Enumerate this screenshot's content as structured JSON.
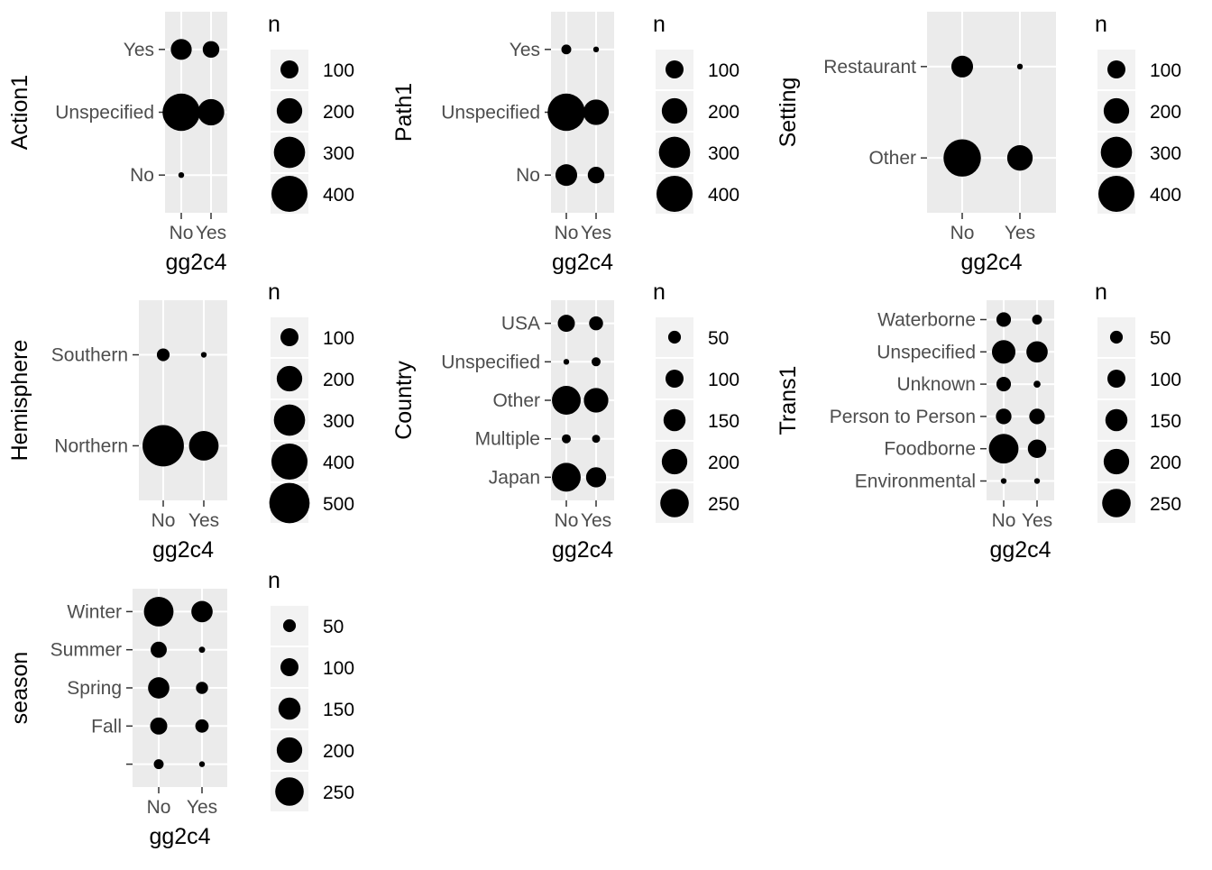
{
  "colors": {
    "panel_bg": "#ebebeb",
    "grid": "#ffffff",
    "point": "#000000",
    "tick": "#333333",
    "tick_label": "#4d4d4d",
    "legend_key_bg": "#f2f2f2"
  },
  "chart_data": [
    {
      "type": "scatter",
      "title": "",
      "xlabel": "gg2c4",
      "ylabel": "Action1",
      "x_categories": [
        "No",
        "Yes"
      ],
      "y_categories": [
        "No",
        "Unspecified",
        "Yes"
      ],
      "points": [
        {
          "x": "No",
          "y": "No",
          "n": 10
        },
        {
          "x": "No",
          "y": "Unspecified",
          "n": 430
        },
        {
          "x": "Yes",
          "y": "Unspecified",
          "n": 215
        },
        {
          "x": "No",
          "y": "Yes",
          "n": 135
        },
        {
          "x": "Yes",
          "y": "Yes",
          "n": 85
        }
      ],
      "legend": {
        "title": "n",
        "breaks": [
          100,
          200,
          300,
          400
        ],
        "labels": [
          "100",
          "200",
          "300",
          "400"
        ]
      }
    },
    {
      "type": "scatter",
      "title": "",
      "xlabel": "gg2c4",
      "ylabel": "Path1",
      "x_categories": [
        "No",
        "Yes"
      ],
      "y_categories": [
        "No",
        "Unspecified",
        "Yes"
      ],
      "points": [
        {
          "x": "No",
          "y": "No",
          "n": 145
        },
        {
          "x": "Yes",
          "y": "No",
          "n": 85
        },
        {
          "x": "No",
          "y": "Unspecified",
          "n": 430
        },
        {
          "x": "Yes",
          "y": "Unspecified",
          "n": 200
        },
        {
          "x": "No",
          "y": "Yes",
          "n": 30
        },
        {
          "x": "Yes",
          "y": "Yes",
          "n": 10
        }
      ],
      "legend": {
        "title": "n",
        "breaks": [
          100,
          200,
          300,
          400
        ],
        "labels": [
          "100",
          "200",
          "300",
          "400"
        ]
      }
    },
    {
      "type": "scatter",
      "title": "",
      "xlabel": "gg2c4",
      "ylabel": "Setting",
      "x_categories": [
        "No",
        "Yes"
      ],
      "y_categories": [
        "Other",
        "Restaurant"
      ],
      "points": [
        {
          "x": "No",
          "y": "Other",
          "n": 430
        },
        {
          "x": "Yes",
          "y": "Other",
          "n": 200
        },
        {
          "x": "No",
          "y": "Restaurant",
          "n": 145
        },
        {
          "x": "Yes",
          "y": "Restaurant",
          "n": 10
        }
      ],
      "legend": {
        "title": "n",
        "breaks": [
          100,
          200,
          300,
          400
        ],
        "labels": [
          "100",
          "200",
          "300",
          "400"
        ]
      }
    },
    {
      "type": "scatter",
      "title": "",
      "xlabel": "gg2c4",
      "ylabel": "Hemisphere",
      "x_categories": [
        "No",
        "Yes"
      ],
      "y_categories": [
        "Northern",
        "Southern"
      ],
      "points": [
        {
          "x": "No",
          "y": "Northern",
          "n": 525
        },
        {
          "x": "Yes",
          "y": "Northern",
          "n": 270
        },
        {
          "x": "No",
          "y": "Southern",
          "n": 50
        },
        {
          "x": "Yes",
          "y": "Southern",
          "n": 10
        }
      ],
      "legend": {
        "title": "n",
        "breaks": [
          100,
          200,
          300,
          400,
          500
        ],
        "labels": [
          "100",
          "200",
          "300",
          "400",
          "500"
        ]
      }
    },
    {
      "type": "scatter",
      "title": "",
      "xlabel": "gg2c4",
      "ylabel": "Country",
      "x_categories": [
        "No",
        "Yes"
      ],
      "y_categories": [
        "Japan",
        "Multiple",
        "Other",
        "Unspecified",
        "USA"
      ],
      "points": [
        {
          "x": "No",
          "y": "Japan",
          "n": 255
        },
        {
          "x": "Yes",
          "y": "Japan",
          "n": 125
        },
        {
          "x": "No",
          "y": "Multiple",
          "n": 25
        },
        {
          "x": "Yes",
          "y": "Multiple",
          "n": 20
        },
        {
          "x": "No",
          "y": "Other",
          "n": 255
        },
        {
          "x": "Yes",
          "y": "Other",
          "n": 185
        },
        {
          "x": "No",
          "y": "Unspecified",
          "n": 8
        },
        {
          "x": "Yes",
          "y": "Unspecified",
          "n": 25
        },
        {
          "x": "No",
          "y": "USA",
          "n": 90
        },
        {
          "x": "Yes",
          "y": "USA",
          "n": 60
        }
      ],
      "legend": {
        "title": "n",
        "breaks": [
          50,
          100,
          150,
          200,
          250
        ],
        "labels": [
          "50",
          "100",
          "150",
          "200",
          "250"
        ]
      }
    },
    {
      "type": "scatter",
      "title": "",
      "xlabel": "gg2c4",
      "ylabel": "Trans1",
      "x_categories": [
        "No",
        "Yes"
      ],
      "y_categories": [
        "Environmental",
        "Foodborne",
        "Person to Person",
        "Unknown",
        "Unspecified",
        "Waterborne"
      ],
      "points": [
        {
          "x": "No",
          "y": "Environmental",
          "n": 10
        },
        {
          "x": "Yes",
          "y": "Environmental",
          "n": 8
        },
        {
          "x": "No",
          "y": "Foodborne",
          "n": 270
        },
        {
          "x": "Yes",
          "y": "Foodborne",
          "n": 105
        },
        {
          "x": "No",
          "y": "Person to Person",
          "n": 75
        },
        {
          "x": "Yes",
          "y": "Person to Person",
          "n": 75
        },
        {
          "x": "No",
          "y": "Unknown",
          "n": 65
        },
        {
          "x": "Yes",
          "y": "Unknown",
          "n": 15
        },
        {
          "x": "No",
          "y": "Unspecified",
          "n": 170
        },
        {
          "x": "Yes",
          "y": "Unspecified",
          "n": 140
        },
        {
          "x": "No",
          "y": "Waterborne",
          "n": 65
        },
        {
          "x": "Yes",
          "y": "Waterborne",
          "n": 30
        }
      ],
      "legend": {
        "title": "n",
        "breaks": [
          50,
          100,
          150,
          200,
          250
        ],
        "labels": [
          "50",
          "100",
          "150",
          "200",
          "250"
        ]
      }
    },
    {
      "type": "scatter",
      "title": "",
      "xlabel": "gg2c4",
      "ylabel": "season",
      "x_categories": [
        "No",
        "Yes"
      ],
      "y_categories": [
        "",
        "Fall",
        "Spring",
        "Summer",
        "Winter"
      ],
      "points": [
        {
          "x": "No",
          "y": "",
          "n": 30
        },
        {
          "x": "Yes",
          "y": "",
          "n": 10
        },
        {
          "x": "No",
          "y": "Fall",
          "n": 90
        },
        {
          "x": "Yes",
          "y": "Fall",
          "n": 55
        },
        {
          "x": "No",
          "y": "Spring",
          "n": 140
        },
        {
          "x": "Yes",
          "y": "Spring",
          "n": 45
        },
        {
          "x": "No",
          "y": "Summer",
          "n": 80
        },
        {
          "x": "Yes",
          "y": "Summer",
          "n": 12
        },
        {
          "x": "No",
          "y": "Winter",
          "n": 270
        },
        {
          "x": "Yes",
          "y": "Winter",
          "n": 140
        }
      ],
      "legend": {
        "title": "n",
        "breaks": [
          50,
          100,
          150,
          200,
          250
        ],
        "labels": [
          "50",
          "100",
          "150",
          "200",
          "250"
        ]
      }
    }
  ]
}
